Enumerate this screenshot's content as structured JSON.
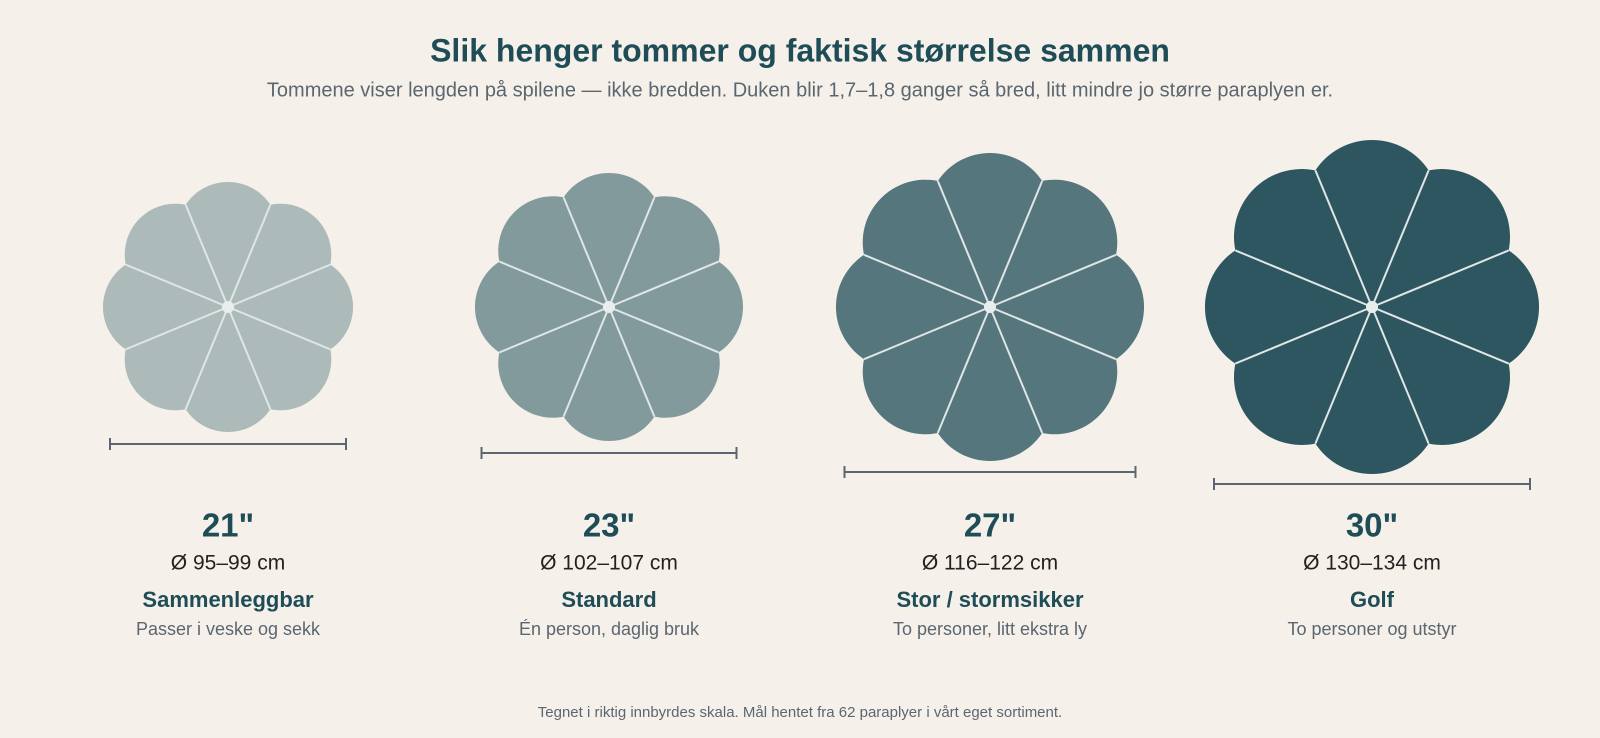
{
  "header": {
    "title": "Slik henger tommer og faktisk størrelse sammen",
    "subtitle": "Tommene viser lengden på spilene — ikke bredden. Duken blir 1,7–1,8 ganger så bred, litt mindre jo større paraplyen er."
  },
  "items": [
    {
      "size": "21\"",
      "diameter": "Ø 95–99 cm",
      "name": "Sammenleggbar",
      "description": "Passer i veske og sekk"
    },
    {
      "size": "23\"",
      "diameter": "Ø 102–107 cm",
      "name": "Standard",
      "description": "Én person, daglig bruk"
    },
    {
      "size": "27\"",
      "diameter": "Ø 116–122 cm",
      "name": "Stor / stormsikker",
      "description": "To personer, litt ekstra ly"
    },
    {
      "size": "30\"",
      "diameter": "Ø 130–134 cm",
      "name": "Golf",
      "description": "To personer og utstyr"
    }
  ],
  "footnote": "Tegnet i riktig innbyrdes skala. Mål hentet fra 62 paraplyer i vårt eget sortiment."
}
